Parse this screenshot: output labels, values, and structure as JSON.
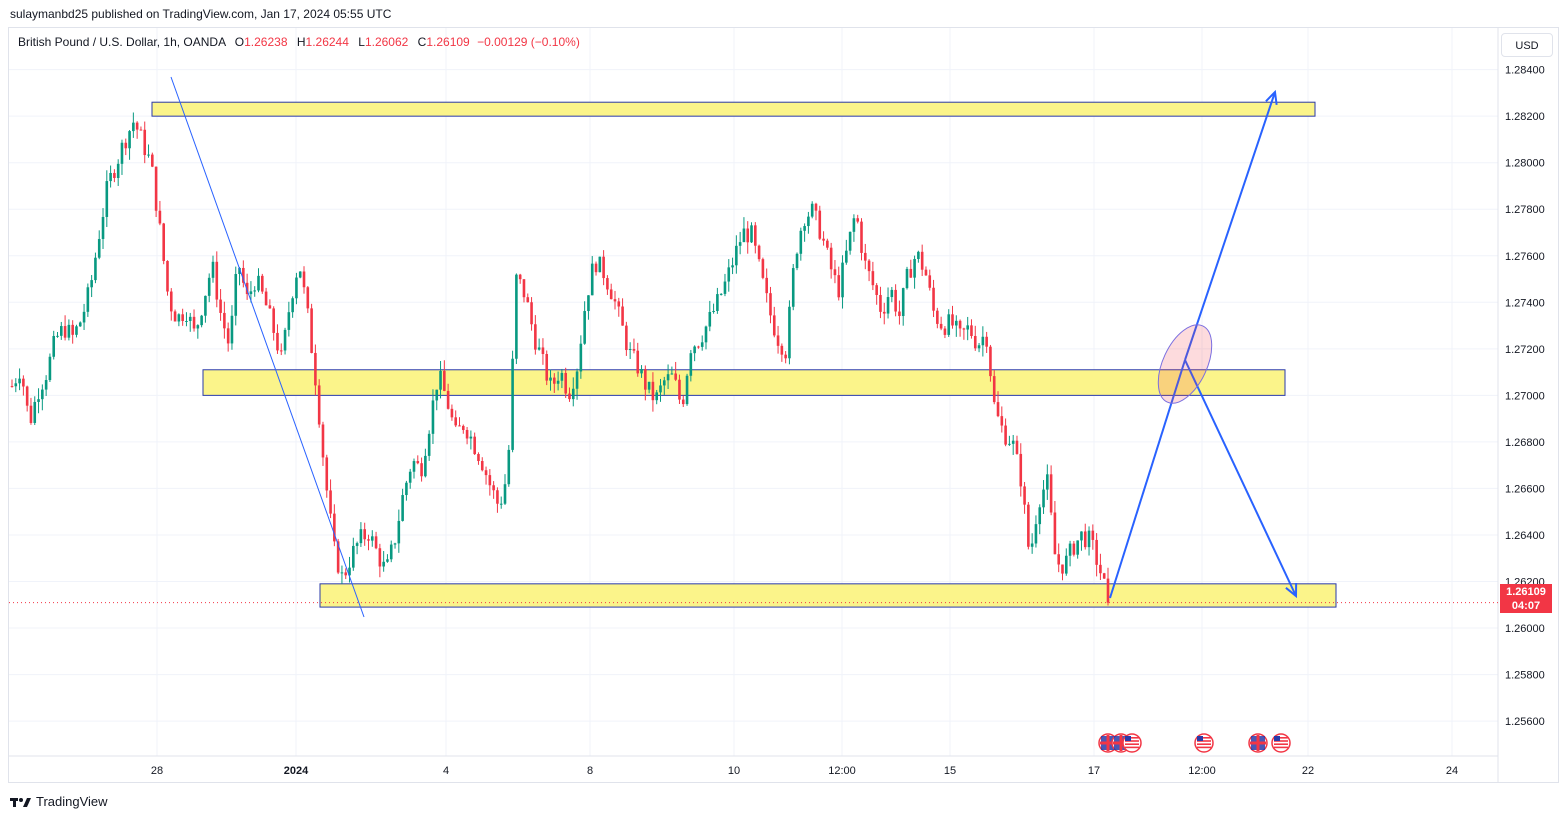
{
  "header": {
    "published_by": "sulaymanbd25 published on TradingView.com, Jan 17, 2024 05:55 UTC"
  },
  "legend": {
    "symbol": "British Pound / U.S. Dollar, 1h, OANDA",
    "o_label": "O",
    "o_value": "1.26238",
    "h_label": "H",
    "h_value": "1.26244",
    "l_label": "L",
    "l_value": "1.26062",
    "c_label": "C",
    "c_value": "1.26109",
    "change": "−0.00129 (−0.10%)"
  },
  "price_scale": {
    "currency": "USD",
    "ticks": [
      "1.28400",
      "1.28200",
      "1.28000",
      "1.27800",
      "1.27600",
      "1.27400",
      "1.27200",
      "1.27000",
      "1.26800",
      "1.26600",
      "1.26400",
      "1.26200",
      "1.26000",
      "1.25800",
      "1.25600"
    ],
    "last_price": "1.26109",
    "countdown": "04:07"
  },
  "time_scale": {
    "labels": [
      "28",
      "2024",
      "4",
      "8",
      "10",
      "12:00",
      "15",
      "17",
      "12:00",
      "22",
      "24"
    ]
  },
  "chart_data": {
    "type": "candlestick",
    "title": "British Pound / U.S. Dollar, 1h, OANDA",
    "ylim": [
      1.2545,
      1.2845
    ],
    "grid": true,
    "last_close": 1.26109,
    "zones": [
      {
        "name": "resistance",
        "low": 1.282,
        "high": 1.2826
      },
      {
        "name": "middle",
        "low": 1.27,
        "high": 1.2711
      },
      {
        "name": "support",
        "low": 1.2609,
        "high": 1.2619
      }
    ],
    "close_path_approx": [
      1.2704,
      1.2712,
      1.2688,
      1.2702,
      1.271,
      1.2724,
      1.2729,
      1.2725,
      1.2733,
      1.2746,
      1.2769,
      1.279,
      1.28,
      1.281,
      1.2818,
      1.2809,
      1.2799,
      1.2771,
      1.2741,
      1.2733,
      1.2737,
      1.2726,
      1.2741,
      1.2756,
      1.2735,
      1.2721,
      1.2758,
      1.2741,
      1.275,
      1.2741,
      1.2729,
      1.2715,
      1.2741,
      1.2758,
      1.2734,
      1.2704,
      1.2665,
      1.2634,
      1.2621,
      1.2631,
      1.2638,
      1.2641,
      1.2632,
      1.2624,
      1.2638,
      1.2658,
      1.2672,
      1.2668,
      1.2688,
      1.2709,
      1.2698,
      1.2683,
      1.2688,
      1.268,
      1.2672,
      1.2661,
      1.2652,
      1.2667,
      1.2751,
      1.2743,
      1.2726,
      1.2714,
      1.2703,
      1.2711,
      1.2701,
      1.2713,
      1.2742,
      1.2758,
      1.2753,
      1.2744,
      1.2731,
      1.2718,
      1.2712,
      1.2703,
      1.2698,
      1.2706,
      1.2708,
      1.2695,
      1.2721,
      1.2724,
      1.2731,
      1.2739,
      1.2748,
      1.2759,
      1.277,
      1.2769,
      1.2753,
      1.2737,
      1.2725,
      1.2719,
      1.276,
      1.2777,
      1.2779,
      1.277,
      1.2756,
      1.2745,
      1.2762,
      1.2779,
      1.2757,
      1.2747,
      1.2736,
      1.2746,
      1.2734,
      1.2752,
      1.2761,
      1.2753,
      1.2735,
      1.273,
      1.2731,
      1.2725,
      1.2729,
      1.2722,
      1.2727,
      1.2693,
      1.2684,
      1.268,
      1.2664,
      1.263,
      1.2655,
      1.2663,
      1.2628,
      1.2627,
      1.2635,
      1.264,
      1.2637,
      1.2626,
      1.2612
    ]
  },
  "annotations": {
    "forecast": [
      {
        "from": "1.26109",
        "to": "1.27100"
      },
      {
        "from": "1.27100",
        "to": "1.28250"
      },
      {
        "from": "1.27100",
        "to": "1.26100"
      }
    ]
  },
  "events": [
    "gb-us-flags",
    "us-flag",
    "gb-flag",
    "us-flag"
  ],
  "footer": {
    "brand": "TradingView"
  },
  "colors": {
    "up": "#089981",
    "down": "#f23645",
    "zone_fill": "#fbf48a",
    "zone_border": "#2a3aa8",
    "arrow": "#2962ff",
    "grid": "#f0f3fa"
  }
}
